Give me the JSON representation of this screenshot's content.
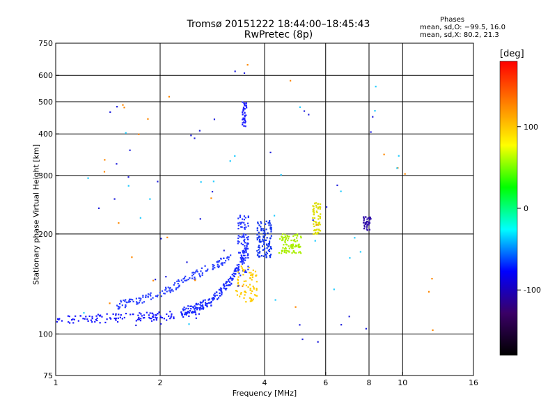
{
  "chart_data": {
    "type": "scatter",
    "title": "Tromsø 20151222 18:44:00–18:45:43",
    "subtitle": "RwPretec (8p)",
    "xlabel": "Frequency [MHz]",
    "ylabel": "Stationary phase Virtual Height [km]",
    "x_scale": "log",
    "y_scale": "log",
    "xlim": [
      1,
      16
    ],
    "ylim": [
      75,
      750
    ],
    "x_ticks": [
      1,
      2,
      4,
      6,
      8,
      10,
      16
    ],
    "y_ticks": [
      75,
      100,
      200,
      300,
      400,
      500,
      600,
      750
    ],
    "x_grid": [
      2,
      4,
      6,
      8,
      10
    ],
    "y_grid": [
      100,
      200,
      300,
      400,
      500,
      600
    ],
    "phases": {
      "heading": "Phases",
      "line_o": "mean, sd,O: −99.5, 16.0",
      "line_x": "mean, sd,X: 80.2, 21.3"
    },
    "colorbar": {
      "label": "[deg]",
      "range": [
        -180,
        180
      ],
      "ticks": [
        100,
        0,
        -100
      ],
      "colors": [
        "#000000",
        "#3a0066",
        "#0000ff",
        "#00ffff",
        "#00ff00",
        "#ffff00",
        "#ff8000",
        "#ff0000"
      ]
    },
    "clusters": [
      {
        "name": "o-trace-low",
        "color": "#1a1aff",
        "n": 120,
        "xmin": 1.0,
        "xmax": 2.6,
        "ymin": 108,
        "ymax": 116,
        "curve": [
          [
            1.0,
            110
          ],
          [
            1.5,
            112
          ],
          [
            2.0,
            113
          ],
          [
            2.6,
            115
          ]
        ]
      },
      {
        "name": "o-trace-rise",
        "color": "#1a2cff",
        "n": 180,
        "xmin": 2.3,
        "xmax": 3.6,
        "ymin": 115,
        "ymax": 190,
        "curve": [
          [
            2.3,
            116
          ],
          [
            2.8,
            125
          ],
          [
            3.2,
            145
          ],
          [
            3.5,
            175
          ],
          [
            3.6,
            190
          ]
        ]
      },
      {
        "name": "o-trace-upper",
        "color": "#2a40ff",
        "n": 150,
        "xmin": 1.5,
        "xmax": 3.2,
        "ymin": 120,
        "ymax": 170,
        "curve": [
          [
            1.5,
            122
          ],
          [
            2.0,
            132
          ],
          [
            2.5,
            150
          ],
          [
            3.0,
            165
          ],
          [
            3.2,
            170
          ]
        ]
      },
      {
        "name": "o-cusp",
        "color": "#2233ff",
        "n": 90,
        "xmin": 3.35,
        "xmax": 3.6,
        "ymin": 150,
        "ymax": 230,
        "curve": []
      },
      {
        "name": "o-f2",
        "color": "#1133ee",
        "n": 110,
        "xmin": 3.8,
        "xmax": 4.2,
        "ymin": 170,
        "ymax": 220,
        "curve": []
      },
      {
        "name": "x-trace-mid",
        "color": "#ffcc00",
        "n": 70,
        "xmin": 3.3,
        "xmax": 3.8,
        "ymin": 125,
        "ymax": 160,
        "curve": []
      },
      {
        "name": "x-trace-yg",
        "color": "#aaee00",
        "n": 90,
        "xmin": 4.4,
        "xmax": 5.1,
        "ymin": 175,
        "ymax": 200,
        "curve": []
      },
      {
        "name": "x-cusp",
        "color": "#dddd00",
        "n": 60,
        "xmin": 5.5,
        "xmax": 5.8,
        "ymin": 200,
        "ymax": 250,
        "curve": []
      },
      {
        "name": "spread-high",
        "color": "#2222ff",
        "n": 40,
        "xmin": 3.45,
        "xmax": 3.55,
        "ymin": 420,
        "ymax": 500,
        "curve": []
      },
      {
        "name": "loop-8mhz",
        "color": "#3311aa",
        "n": 40,
        "xmin": 7.7,
        "xmax": 8.1,
        "ymin": 205,
        "ymax": 228,
        "curve": []
      },
      {
        "name": "misc-orange",
        "color": "#ff8800",
        "n": 25,
        "xmin": 1.3,
        "xmax": 12.5,
        "ymin": 85,
        "ymax": 650,
        "curve": []
      },
      {
        "name": "misc-cyan",
        "color": "#22ccff",
        "n": 25,
        "xmin": 1.2,
        "xmax": 12.5,
        "ymin": 90,
        "ymax": 600,
        "curve": []
      },
      {
        "name": "misc-blue",
        "color": "#2222dd",
        "n": 40,
        "xmin": 1.2,
        "xmax": 8.5,
        "ymin": 90,
        "ymax": 620,
        "curve": []
      }
    ]
  }
}
